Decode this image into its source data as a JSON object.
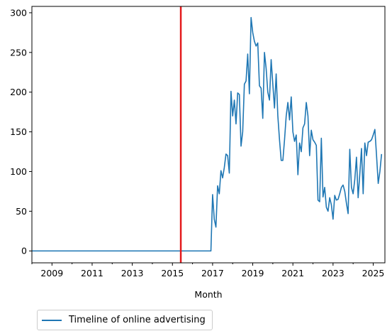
{
  "chart_data": {
    "type": "line",
    "title": "",
    "xlabel": "Month",
    "ylabel": "",
    "ylim": [
      -15,
      308
    ],
    "xlim": [
      "2008-01",
      "2025-08"
    ],
    "grid": false,
    "legend_position": "below-left",
    "x_ticks": [
      "2009",
      "2011",
      "2013",
      "2015",
      "2017",
      "2019",
      "2021",
      "2023",
      "2025"
    ],
    "y_ticks": [
      0,
      50,
      100,
      150,
      200,
      250,
      300
    ],
    "vline": {
      "x": "2015-06",
      "color": "#e41a1c"
    },
    "series": [
      {
        "name": "Timeline of online advertising",
        "color": "#1f77b4",
        "points": [
          [
            "2008-01",
            0
          ],
          [
            "2016-12",
            0
          ],
          [
            "2017-01",
            71
          ],
          [
            "2017-02",
            40
          ],
          [
            "2017-03",
            30
          ],
          [
            "2017-04",
            82
          ],
          [
            "2017-05",
            72
          ],
          [
            "2017-06",
            101
          ],
          [
            "2017-07",
            92
          ],
          [
            "2017-08",
            105
          ],
          [
            "2017-09",
            122
          ],
          [
            "2017-10",
            120
          ],
          [
            "2017-11",
            98
          ],
          [
            "2017-12",
            201
          ],
          [
            "2018-01",
            170
          ],
          [
            "2018-02",
            190
          ],
          [
            "2018-03",
            160
          ],
          [
            "2018-04",
            199
          ],
          [
            "2018-05",
            197
          ],
          [
            "2018-06",
            132
          ],
          [
            "2018-07",
            150
          ],
          [
            "2018-08",
            210
          ],
          [
            "2018-09",
            214
          ],
          [
            "2018-10",
            248
          ],
          [
            "2018-11",
            198
          ],
          [
            "2018-12",
            294
          ],
          [
            "2019-01",
            275
          ],
          [
            "2019-02",
            264
          ],
          [
            "2019-03",
            258
          ],
          [
            "2019-04",
            262
          ],
          [
            "2019-05",
            208
          ],
          [
            "2019-06",
            205
          ],
          [
            "2019-07",
            167
          ],
          [
            "2019-08",
            250
          ],
          [
            "2019-09",
            230
          ],
          [
            "2019-10",
            200
          ],
          [
            "2019-11",
            190
          ],
          [
            "2019-12",
            241
          ],
          [
            "2020-01",
            210
          ],
          [
            "2020-02",
            180
          ],
          [
            "2020-03",
            223
          ],
          [
            "2020-04",
            170
          ],
          [
            "2020-05",
            140
          ],
          [
            "2020-06",
            114
          ],
          [
            "2020-07",
            114
          ],
          [
            "2020-08",
            140
          ],
          [
            "2020-09",
            170
          ],
          [
            "2020-10",
            187
          ],
          [
            "2020-11",
            165
          ],
          [
            "2020-12",
            194
          ],
          [
            "2021-01",
            150
          ],
          [
            "2021-02",
            138
          ],
          [
            "2021-03",
            146
          ],
          [
            "2021-04",
            96
          ],
          [
            "2021-05",
            136
          ],
          [
            "2021-06",
            125
          ],
          [
            "2021-07",
            155
          ],
          [
            "2021-08",
            160
          ],
          [
            "2021-09",
            187
          ],
          [
            "2021-10",
            170
          ],
          [
            "2021-11",
            120
          ],
          [
            "2021-12",
            152
          ],
          [
            "2022-01",
            140
          ],
          [
            "2022-02",
            137
          ],
          [
            "2022-03",
            133
          ],
          [
            "2022-04",
            64
          ],
          [
            "2022-05",
            62
          ],
          [
            "2022-06",
            142
          ],
          [
            "2022-07",
            68
          ],
          [
            "2022-08",
            80
          ],
          [
            "2022-09",
            55
          ],
          [
            "2022-10",
            50
          ],
          [
            "2022-11",
            67
          ],
          [
            "2022-12",
            58
          ],
          [
            "2023-01",
            40
          ],
          [
            "2023-02",
            70
          ],
          [
            "2023-03",
            64
          ],
          [
            "2023-04",
            65
          ],
          [
            "2023-05",
            72
          ],
          [
            "2023-06",
            80
          ],
          [
            "2023-07",
            83
          ],
          [
            "2023-08",
            75
          ],
          [
            "2023-09",
            60
          ],
          [
            "2023-10",
            47
          ],
          [
            "2023-11",
            128
          ],
          [
            "2023-12",
            80
          ],
          [
            "2024-01",
            72
          ],
          [
            "2024-02",
            90
          ],
          [
            "2024-03",
            118
          ],
          [
            "2024-04",
            67
          ],
          [
            "2024-05",
            97
          ],
          [
            "2024-06",
            129
          ],
          [
            "2024-07",
            72
          ],
          [
            "2024-08",
            136
          ],
          [
            "2024-09",
            120
          ],
          [
            "2024-10",
            137
          ],
          [
            "2024-11",
            138
          ],
          [
            "2024-12",
            140
          ],
          [
            "2025-01",
            146
          ],
          [
            "2025-02",
            153
          ],
          [
            "2025-03",
            120
          ],
          [
            "2025-04",
            85
          ],
          [
            "2025-05",
            100
          ],
          [
            "2025-06",
            122
          ]
        ]
      }
    ]
  }
}
